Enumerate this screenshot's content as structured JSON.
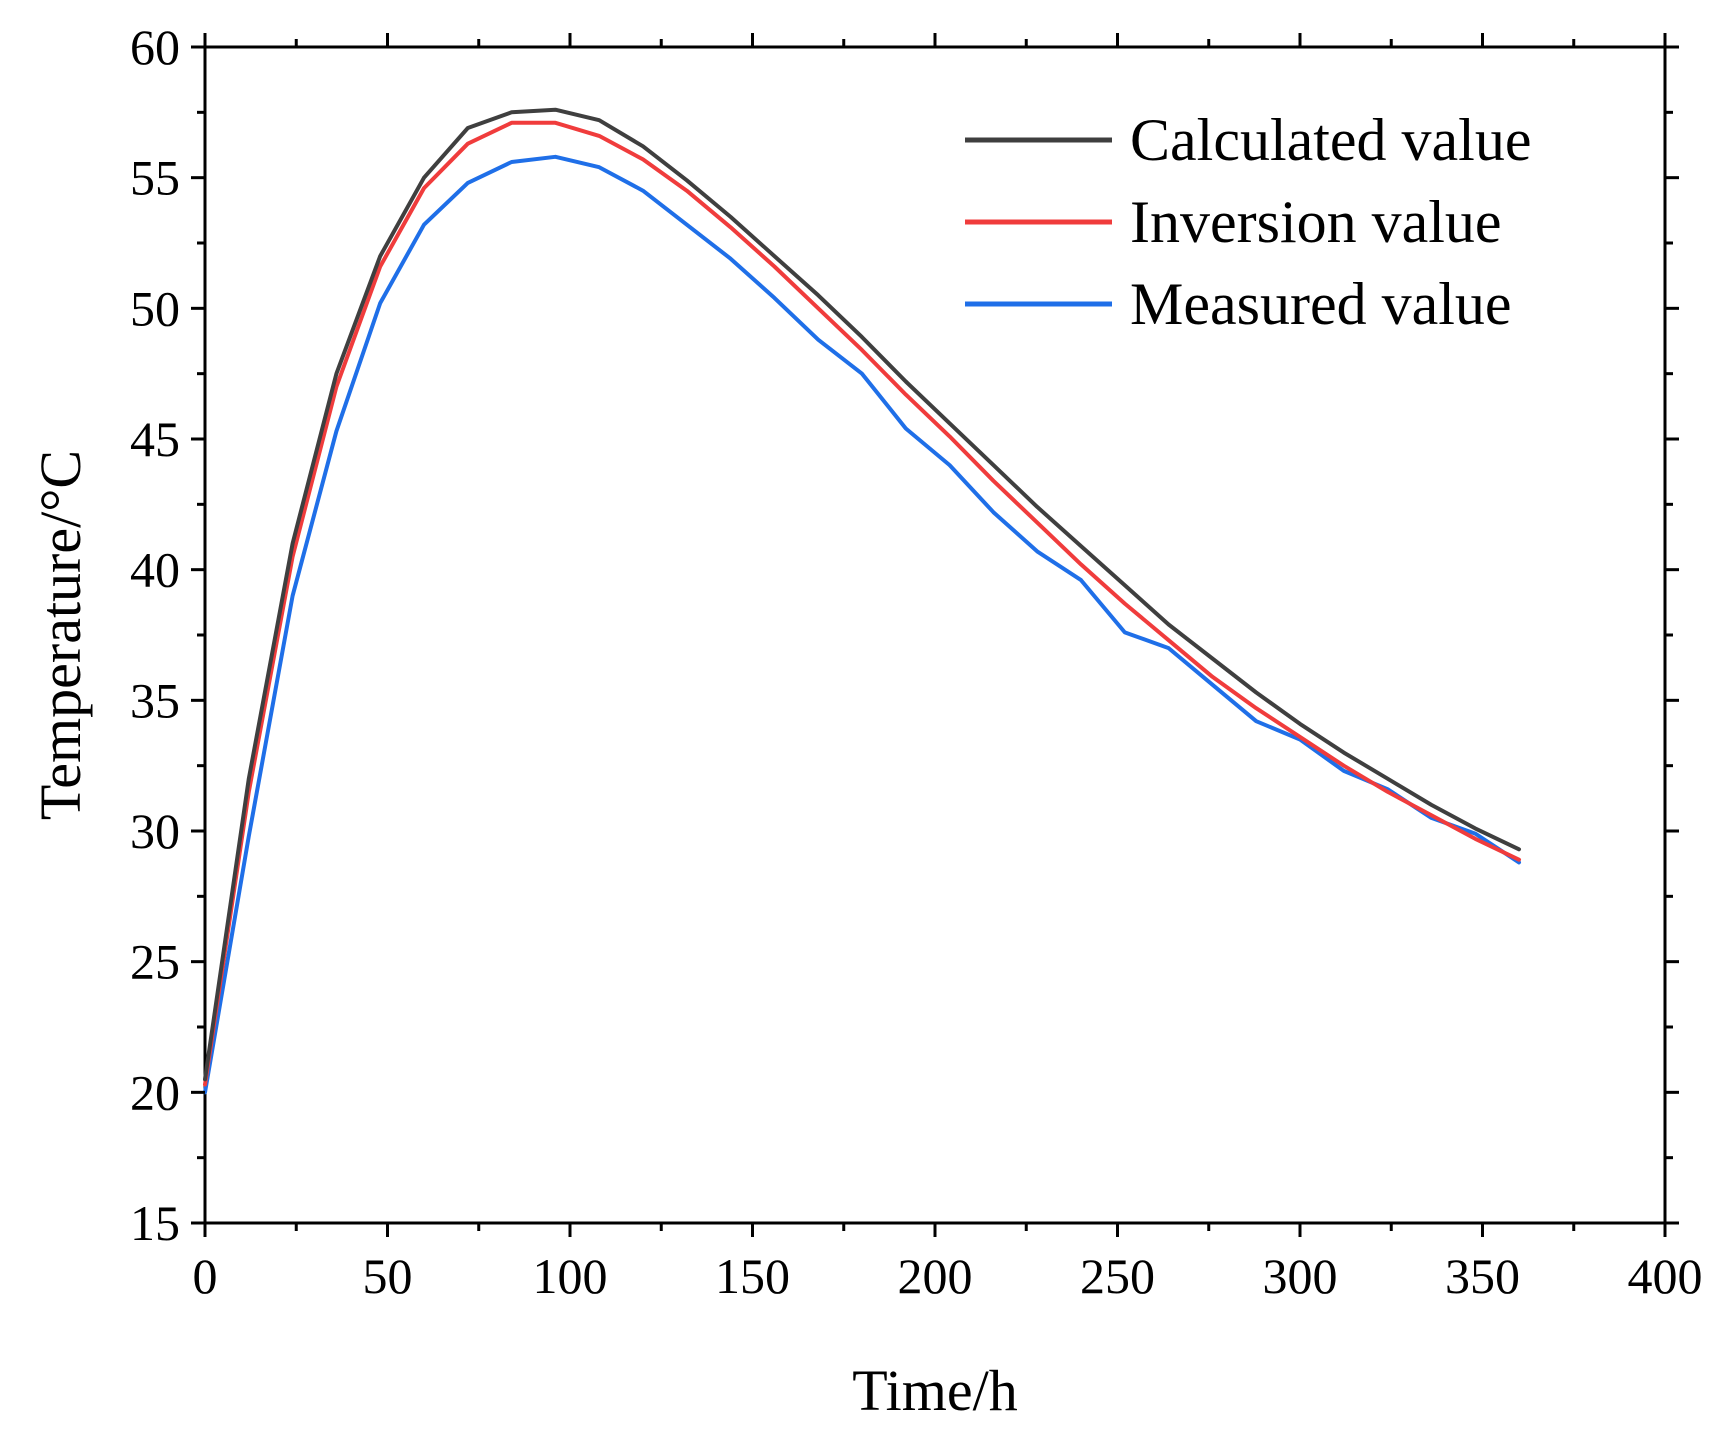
{
  "chart_data": {
    "type": "line",
    "xlabel": "Time/h",
    "ylabel": "Temperature/°C",
    "xlim": [
      0,
      400
    ],
    "ylim": [
      15,
      60
    ],
    "xticks": [
      0,
      50,
      100,
      150,
      200,
      250,
      300,
      350,
      400
    ],
    "yticks": [
      15,
      20,
      25,
      30,
      35,
      40,
      45,
      50,
      55,
      60
    ],
    "xtick_labels": [
      "0",
      "50",
      "100",
      "150",
      "200",
      "250",
      "300",
      "350",
      "400"
    ],
    "ytick_labels": [
      "15",
      "20",
      "25",
      "30",
      "35",
      "40",
      "45",
      "50",
      "55",
      "60"
    ],
    "grid": false,
    "legend_position": "top-right",
    "x": [
      0,
      12,
      24,
      36,
      48,
      60,
      72,
      84,
      96,
      108,
      120,
      132,
      144,
      156,
      168,
      180,
      192,
      204,
      216,
      228,
      240,
      252,
      264,
      276,
      288,
      300,
      312,
      324,
      336,
      348,
      360
    ],
    "series": [
      {
        "name": "Calculated value",
        "color": "#3f3f3f",
        "values": [
          20.5,
          32.0,
          41.0,
          47.5,
          52.0,
          55.0,
          56.9,
          57.5,
          57.6,
          57.2,
          56.2,
          54.9,
          53.5,
          52.0,
          50.5,
          48.9,
          47.2,
          45.6,
          44.0,
          42.4,
          40.9,
          39.4,
          37.9,
          36.6,
          35.3,
          34.1,
          33.0,
          32.0,
          31.0,
          30.1,
          29.3
        ]
      },
      {
        "name": "Inversion value",
        "color": "#f03c3c",
        "values": [
          20.3,
          31.5,
          40.5,
          47.0,
          51.6,
          54.6,
          56.3,
          57.1,
          57.1,
          56.6,
          55.7,
          54.5,
          53.1,
          51.6,
          50.0,
          48.4,
          46.7,
          45.1,
          43.4,
          41.8,
          40.2,
          38.7,
          37.3,
          35.9,
          34.7,
          33.6,
          32.5,
          31.5,
          30.6,
          29.7,
          28.9
        ]
      },
      {
        "name": "Measured value",
        "color": "#1f6fe8",
        "values": [
          20.0,
          29.8,
          39.0,
          45.3,
          50.2,
          53.2,
          54.8,
          55.6,
          55.8,
          55.4,
          54.5,
          53.2,
          51.9,
          50.4,
          48.8,
          47.5,
          45.4,
          44.0,
          42.2,
          40.7,
          39.6,
          37.6,
          37.0,
          35.6,
          34.2,
          33.5,
          32.3,
          31.6,
          30.5,
          29.9,
          28.8
        ]
      }
    ]
  }
}
